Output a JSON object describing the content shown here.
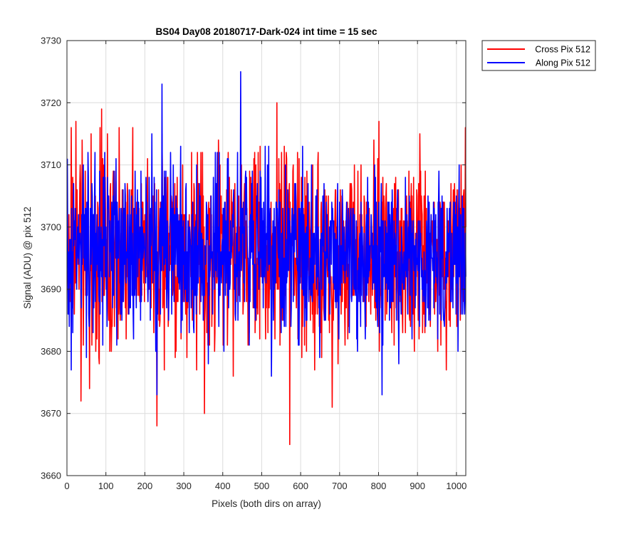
{
  "chart_data": {
    "type": "line",
    "title": "BS04 Day08 20180717-Dark-024 int time = 15 sec",
    "xlabel": "Pixels (both dirs on array)",
    "ylabel": "Signal (ADU) @ pix 512",
    "xlim": [
      0,
      1024
    ],
    "ylim": [
      3660,
      3730
    ],
    "xticks": [
      0,
      100,
      200,
      300,
      400,
      500,
      600,
      700,
      800,
      900,
      1000
    ],
    "yticks": [
      3660,
      3670,
      3680,
      3690,
      3700,
      3710,
      3720,
      3730
    ],
    "grid": true,
    "legend_position": "outside top-right",
    "series_stats": {
      "Cross Pix 512": {
        "mean": 3696,
        "std": 8.5,
        "min": 3665,
        "max": 3720
      },
      "Along Pix 512": {
        "mean": 3696,
        "std": 7.5,
        "min": 3673,
        "max": 3725
      }
    },
    "series": [
      {
        "name": "Cross Pix 512",
        "color": "#ff0000",
        "points_count": 1024,
        "notable_points": [
          {
            "x": 22,
            "y": 3717
          },
          {
            "x": 35,
            "y": 3672
          },
          {
            "x": 57,
            "y": 3674
          },
          {
            "x": 88,
            "y": 3719
          },
          {
            "x": 230,
            "y": 3668
          },
          {
            "x": 352,
            "y": 3670
          },
          {
            "x": 538,
            "y": 3720
          },
          {
            "x": 571,
            "y": 3665
          },
          {
            "x": 680,
            "y": 3671
          }
        ]
      },
      {
        "name": "Along Pix 512",
        "color": "#0000ff",
        "points_count": 1024,
        "notable_points": [
          {
            "x": 10,
            "y": 3677
          },
          {
            "x": 243,
            "y": 3723
          },
          {
            "x": 230,
            "y": 3673
          },
          {
            "x": 445,
            "y": 3725
          },
          {
            "x": 524,
            "y": 3676
          },
          {
            "x": 808,
            "y": 3673
          }
        ]
      }
    ]
  },
  "colors": {
    "axes_background": "#ffffff",
    "grid": "#dcdcdc",
    "axis": "#262626"
  }
}
